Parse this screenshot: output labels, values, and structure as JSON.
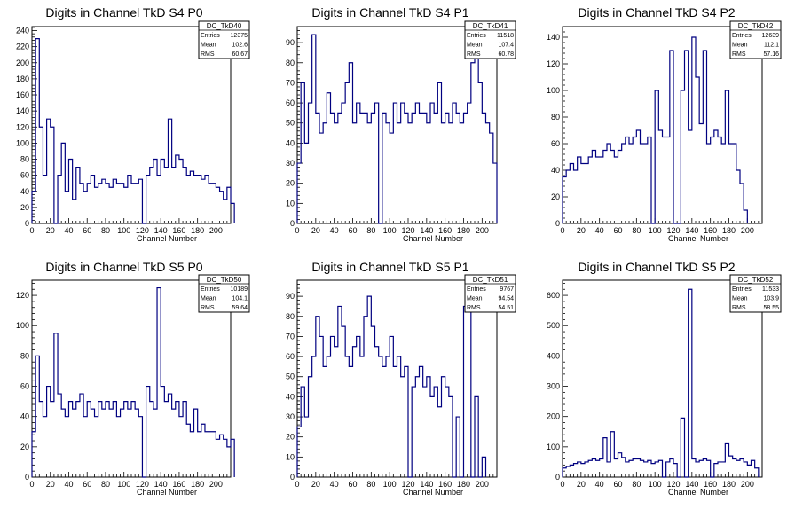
{
  "chart_data": [
    {
      "type": "histogram-step",
      "title": "Digits in Channel TkD S4 P0",
      "xlabel": "Channel Number",
      "xlim": [
        0,
        216
      ],
      "ylim": [
        0,
        245
      ],
      "xticks": [
        0,
        20,
        40,
        60,
        80,
        100,
        120,
        140,
        160,
        180,
        200
      ],
      "yticks": [
        0,
        20,
        40,
        60,
        80,
        100,
        120,
        140,
        160,
        180,
        200,
        220,
        240
      ],
      "stats": {
        "name": "DC_TkD40",
        "entries": "12375",
        "mean": "102.6",
        "rms": "60.67"
      },
      "series": [
        {
          "x_start": 0,
          "bin_width": 4,
          "values": [
            40,
            230,
            120,
            60,
            130,
            120,
            0,
            60,
            100,
            40,
            80,
            30,
            70,
            50,
            40,
            50,
            60,
            45,
            50,
            55,
            50,
            45,
            55,
            50,
            50,
            45,
            60,
            50,
            50,
            55,
            0,
            60,
            70,
            80,
            60,
            80,
            70,
            130,
            70,
            85,
            80,
            70,
            60,
            65,
            60,
            60,
            55,
            60,
            50,
            50,
            45,
            40,
            30,
            45,
            25
          ]
        }
      ]
    },
    {
      "type": "histogram-step",
      "title": "Digits in Channel TkD S4 P1",
      "xlabel": "Channel Number",
      "xlim": [
        0,
        216
      ],
      "ylim": [
        0,
        98
      ],
      "xticks": [
        0,
        20,
        40,
        60,
        80,
        100,
        120,
        140,
        160,
        180,
        200
      ],
      "yticks": [
        0,
        10,
        20,
        30,
        40,
        50,
        60,
        70,
        80,
        90
      ],
      "stats": {
        "name": "DC_TkD41",
        "entries": "11518",
        "mean": "107.4",
        "rms": "60.78"
      },
      "series": [
        {
          "x_start": 0,
          "bin_width": 4,
          "values": [
            30,
            70,
            40,
            60,
            94,
            55,
            45,
            50,
            65,
            55,
            50,
            55,
            60,
            70,
            80,
            50,
            60,
            55,
            55,
            50,
            55,
            60,
            0,
            55,
            50,
            45,
            60,
            50,
            60,
            55,
            50,
            55,
            60,
            55,
            55,
            50,
            60,
            55,
            70,
            50,
            55,
            50,
            60,
            55,
            50,
            55,
            60,
            80,
            90,
            70,
            55,
            50,
            45,
            30
          ]
        }
      ]
    },
    {
      "type": "histogram-step",
      "title": "Digits in Channel TkD S4 P2",
      "xlabel": "Channel Number",
      "xlim": [
        0,
        216
      ],
      "ylim": [
        0,
        148
      ],
      "xticks": [
        0,
        20,
        40,
        60,
        80,
        100,
        120,
        140,
        160,
        180,
        200
      ],
      "yticks": [
        0,
        20,
        40,
        60,
        80,
        100,
        120,
        140
      ],
      "stats": {
        "name": "DC_TkD42",
        "entries": "12639",
        "mean": "112.1",
        "rms": "57.16"
      },
      "series": [
        {
          "x_start": 0,
          "bin_width": 4,
          "values": [
            35,
            40,
            45,
            40,
            50,
            45,
            45,
            50,
            55,
            50,
            50,
            55,
            60,
            55,
            50,
            55,
            60,
            65,
            60,
            65,
            70,
            60,
            60,
            65,
            0,
            100,
            70,
            65,
            65,
            130,
            0,
            0,
            100,
            130,
            70,
            140,
            110,
            75,
            130,
            60,
            65,
            70,
            65,
            60,
            100,
            60,
            60,
            40,
            30,
            10
          ]
        }
      ]
    },
    {
      "type": "histogram-step",
      "title": "Digits in Channel TkD S5 P0",
      "xlabel": "Channel Number",
      "xlim": [
        0,
        216
      ],
      "ylim": [
        0,
        130
      ],
      "xticks": [
        0,
        20,
        40,
        60,
        80,
        100,
        120,
        140,
        160,
        180,
        200
      ],
      "yticks": [
        0,
        20,
        40,
        60,
        80,
        100,
        120
      ],
      "stats": {
        "name": "DC_TkD50",
        "entries": "10189",
        "mean": "104.1",
        "rms": "59.64"
      },
      "series": [
        {
          "x_start": 0,
          "bin_width": 4,
          "values": [
            30,
            80,
            50,
            40,
            60,
            50,
            95,
            55,
            45,
            40,
            50,
            45,
            50,
            55,
            40,
            50,
            45,
            40,
            50,
            45,
            50,
            45,
            50,
            40,
            45,
            50,
            45,
            50,
            45,
            40,
            0,
            60,
            50,
            45,
            125,
            60,
            50,
            55,
            45,
            50,
            40,
            50,
            35,
            30,
            45,
            30,
            35,
            30,
            30,
            30,
            25,
            28,
            25,
            20,
            25
          ]
        }
      ]
    },
    {
      "type": "histogram-step",
      "title": "Digits in Channel TkD S5 P1",
      "xlabel": "Channel Number",
      "xlim": [
        0,
        216
      ],
      "ylim": [
        0,
        98
      ],
      "xticks": [
        0,
        20,
        40,
        60,
        80,
        100,
        120,
        140,
        160,
        180,
        200
      ],
      "yticks": [
        0,
        10,
        20,
        30,
        40,
        50,
        60,
        70,
        80,
        90
      ],
      "stats": {
        "name": "DC_TkD51",
        "entries": "9767",
        "mean": "94.54",
        "rms": "54.51"
      },
      "series": [
        {
          "x_start": 0,
          "bin_width": 4,
          "values": [
            25,
            45,
            30,
            50,
            60,
            80,
            70,
            55,
            60,
            70,
            65,
            85,
            75,
            60,
            55,
            65,
            70,
            60,
            80,
            90,
            75,
            65,
            60,
            55,
            60,
            70,
            55,
            60,
            50,
            55,
            0,
            45,
            50,
            55,
            45,
            50,
            40,
            45,
            35,
            50,
            45,
            40,
            0,
            30,
            0,
            85,
            90,
            0,
            40,
            0,
            10
          ]
        }
      ]
    },
    {
      "type": "histogram-step",
      "title": "Digits in Channel TkD S5 P2",
      "xlabel": "Channel Number",
      "xlim": [
        0,
        216
      ],
      "ylim": [
        0,
        650
      ],
      "xticks": [
        0,
        20,
        40,
        60,
        80,
        100,
        120,
        140,
        160,
        180,
        200
      ],
      "yticks": [
        0,
        100,
        200,
        300,
        400,
        500,
        600
      ],
      "stats": {
        "name": "DC_TkD52",
        "entries": "11533",
        "mean": "103.9",
        "rms": "58.55"
      },
      "series": [
        {
          "x_start": 0,
          "bin_width": 4,
          "values": [
            30,
            35,
            40,
            45,
            50,
            45,
            50,
            55,
            60,
            55,
            60,
            130,
            50,
            150,
            60,
            80,
            65,
            50,
            55,
            60,
            60,
            55,
            50,
            55,
            45,
            50,
            55,
            0,
            50,
            60,
            45,
            0,
            195,
            0,
            620,
            60,
            50,
            55,
            60,
            55,
            0,
            45,
            50,
            50,
            110,
            70,
            60,
            55,
            60,
            50,
            40,
            55,
            30
          ]
        }
      ]
    }
  ]
}
